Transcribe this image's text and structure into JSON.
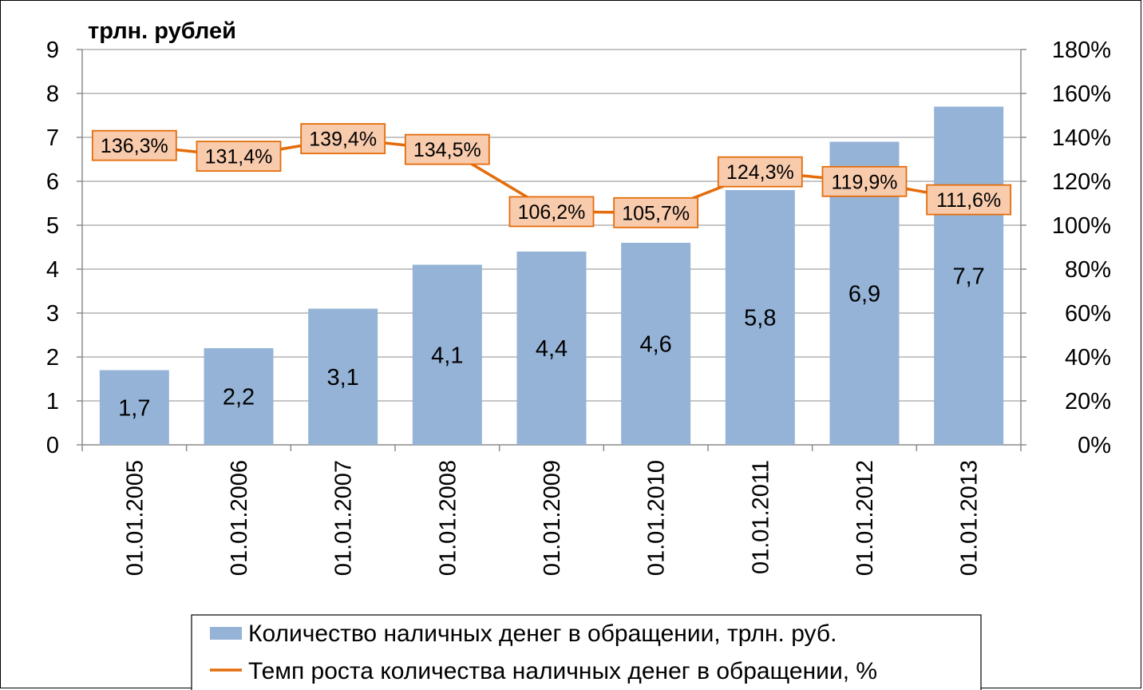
{
  "chart_data": {
    "type": "bar+line",
    "y_unit_label": "трлн. рублей",
    "categories": [
      "01.01.2005",
      "01.01.2006",
      "01.01.2007",
      "01.01.2008",
      "01.01.2009",
      "01.01.2010",
      "01.01.2011",
      "01.01.2012",
      "01.01.2013"
    ],
    "bars": {
      "name": "Количество наличных денег в обращении, трлн. руб.",
      "values": [
        1.7,
        2.2,
        3.1,
        4.1,
        4.4,
        4.6,
        5.8,
        6.9,
        7.7
      ],
      "labels": [
        "1,7",
        "2,2",
        "3,1",
        "4,1",
        "4,4",
        "4,6",
        "5,8",
        "6,9",
        "7,7"
      ],
      "color": "#95b3d7"
    },
    "line": {
      "name": "Темп роста количества наличных денег в обращении, %",
      "values": [
        136.3,
        131.4,
        139.4,
        134.5,
        106.2,
        105.7,
        124.3,
        119.9,
        111.6
      ],
      "labels": [
        "136,3%",
        "131,4%",
        "139,4%",
        "134,5%",
        "106,2%",
        "105,7%",
        "124,3%",
        "119,9%",
        "111,6%"
      ],
      "color": "#e46c0a",
      "label_fill": "#f8cbad"
    },
    "y_left": {
      "min": 0,
      "max": 9,
      "step": 1,
      "ticks": [
        "0",
        "1",
        "2",
        "3",
        "4",
        "5",
        "6",
        "7",
        "8",
        "9"
      ]
    },
    "y_right": {
      "min": 0,
      "max": 180,
      "step": 20,
      "ticks": [
        "0%",
        "20%",
        "40%",
        "60%",
        "80%",
        "100%",
        "120%",
        "140%",
        "160%",
        "180%"
      ]
    },
    "grid": true,
    "legend_position": "bottom"
  }
}
